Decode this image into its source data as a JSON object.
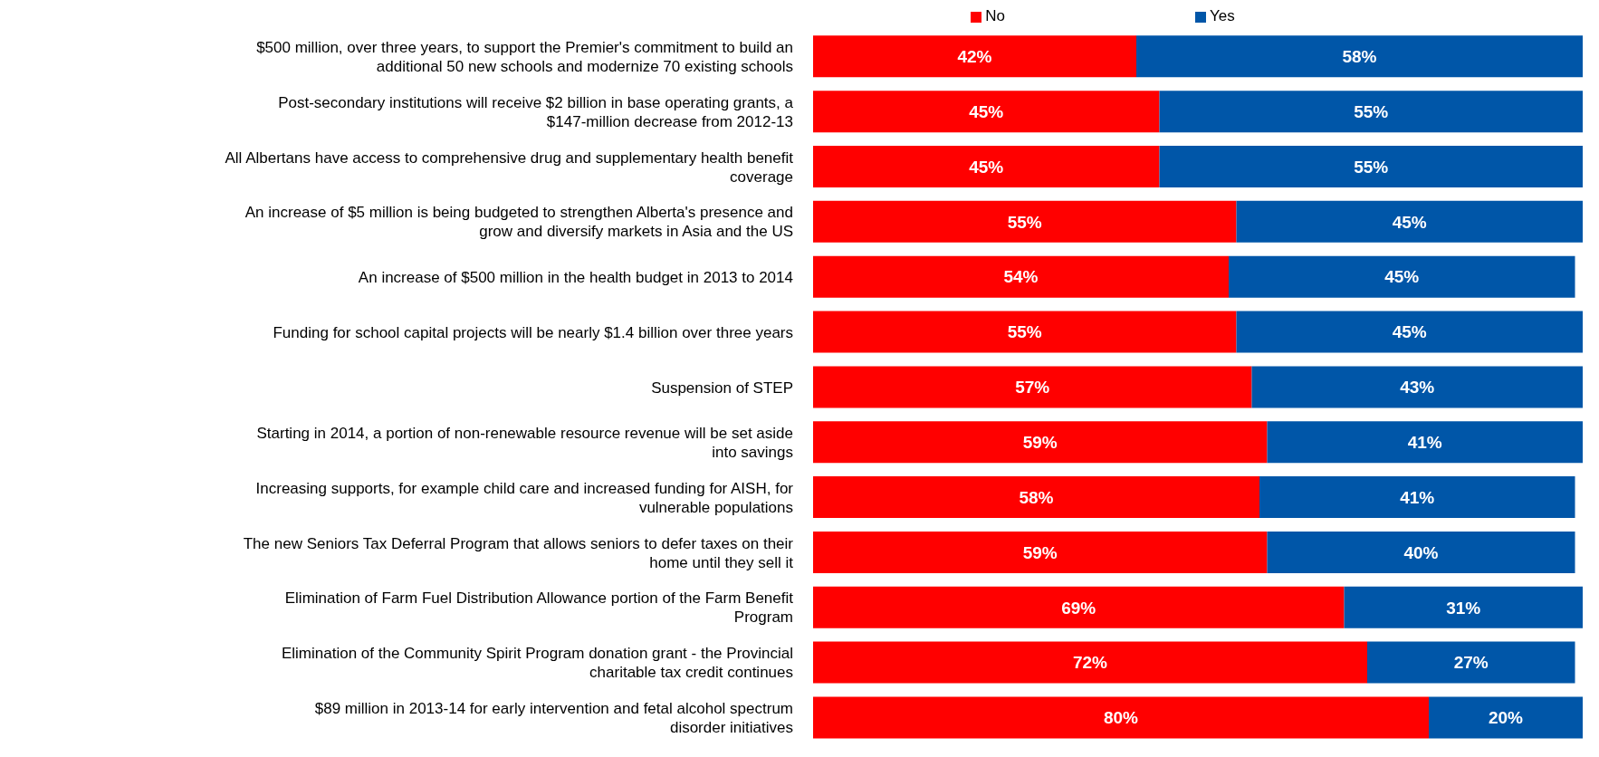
{
  "chart_data": {
    "type": "bar",
    "orientation": "horizontal",
    "stacked": true,
    "legend": "top",
    "categories": [
      "$500 million, over three years, to support the Premier's commitment to build an additional 50 new schools and modernize 70 existing schools",
      "Post-secondary institutions will receive $2 billion in base operating grants, a $147-million decrease from 2012-13",
      "All Albertans have access to comprehensive drug and supplementary health benefit coverage",
      "An increase of $5 million is being budgeted to strengthen Alberta's presence and grow and diversify markets in Asia and the US",
      "An increase of $500 million in the health budget in 2013 to 2014",
      "Funding for school capital projects will be nearly $1.4 billion over three years",
      "Suspension of STEP",
      "Starting in 2014, a portion of non-renewable resource revenue will be set aside into savings",
      "Increasing supports, for example child care and increased funding for AISH, for vulnerable populations",
      "The new Seniors Tax Deferral Program that allows seniors to defer taxes on their home until they sell it",
      "Elimination of Farm Fuel Distribution Allowance portion of the Farm Benefit Program",
      "Elimination of the Community Spirit Program donation grant - the Provincial charitable tax credit continues",
      "$89 million in 2013-14 for early intervention and fetal alcohol spectrum disorder initiatives"
    ],
    "series": [
      {
        "name": "No",
        "color": "#ff0000",
        "values": [
          42,
          45,
          45,
          55,
          54,
          55,
          57,
          59,
          58,
          59,
          69,
          72,
          80
        ],
        "value_labels": [
          "42%",
          "45%",
          "45%",
          "55%",
          "54%",
          "55%",
          "57%",
          "59%",
          "58%",
          "59%",
          "69%",
          "72%",
          "80%"
        ]
      },
      {
        "name": "Yes",
        "color": "#0056a8",
        "values": [
          58,
          55,
          55,
          45,
          45,
          45,
          43,
          41,
          41,
          40,
          31,
          27,
          20
        ],
        "value_labels": [
          "58%",
          "55%",
          "55%",
          "45%",
          "45%",
          "45%",
          "43%",
          "41%",
          "41%",
          "40%",
          "31%",
          "27%",
          "20%"
        ]
      }
    ]
  }
}
